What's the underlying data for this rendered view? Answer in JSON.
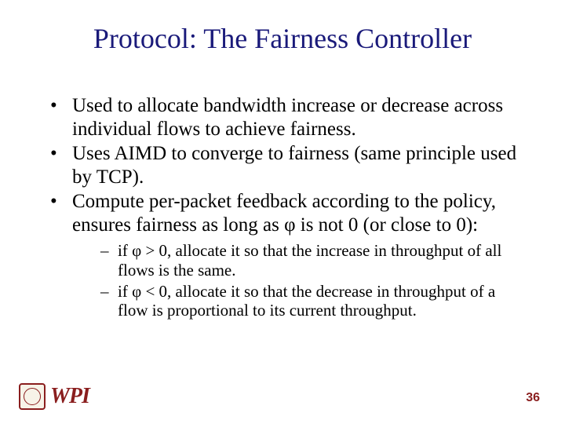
{
  "title": "Protocol: The Fairness Controller",
  "bullets": [
    "Used to allocate bandwidth increase or decrease across individual flows to achieve fairness.",
    "Uses AIMD to converge to fairness (same principle used by TCP).",
    "Compute per-packet feedback according to the policy, ensures fairness as long as φ  is not 0 (or close to 0):"
  ],
  "subbullets": [
    "if φ > 0, allocate it so that the increase in throughput of all flows is the same.",
    "if φ < 0, allocate it so that the decrease in throughput of a flow is proportional to its current throughput."
  ],
  "logo_text": "WPI",
  "page_number": "36",
  "colors": {
    "title": "#1a1a7a",
    "accent": "#8a1e1e",
    "text": "#000000",
    "background": "#ffffff"
  },
  "fonts": {
    "title_size_pt": 36,
    "body_size_pt": 25,
    "sub_size_pt": 21,
    "page_size_pt": 16
  }
}
